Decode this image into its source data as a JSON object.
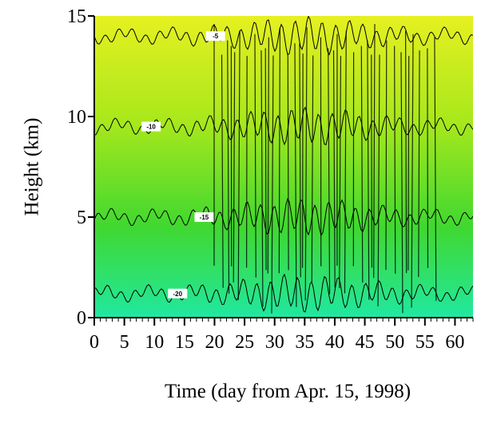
{
  "chart_data": {
    "type": "contour",
    "x_label": "Time (day from Apr. 15, 1998)",
    "y_label": "Height (km)",
    "xlim": [
      0,
      63
    ],
    "xticks": [
      0,
      5,
      10,
      15,
      20,
      25,
      30,
      35,
      40,
      45,
      50,
      55,
      60
    ],
    "ylim": [
      0,
      15
    ],
    "yticks": [
      0,
      5,
      10,
      15
    ],
    "levels": [
      -5,
      -10,
      -15,
      -20
    ],
    "level_heights": [
      14,
      9.5,
      5,
      1.2
    ]
  }
}
